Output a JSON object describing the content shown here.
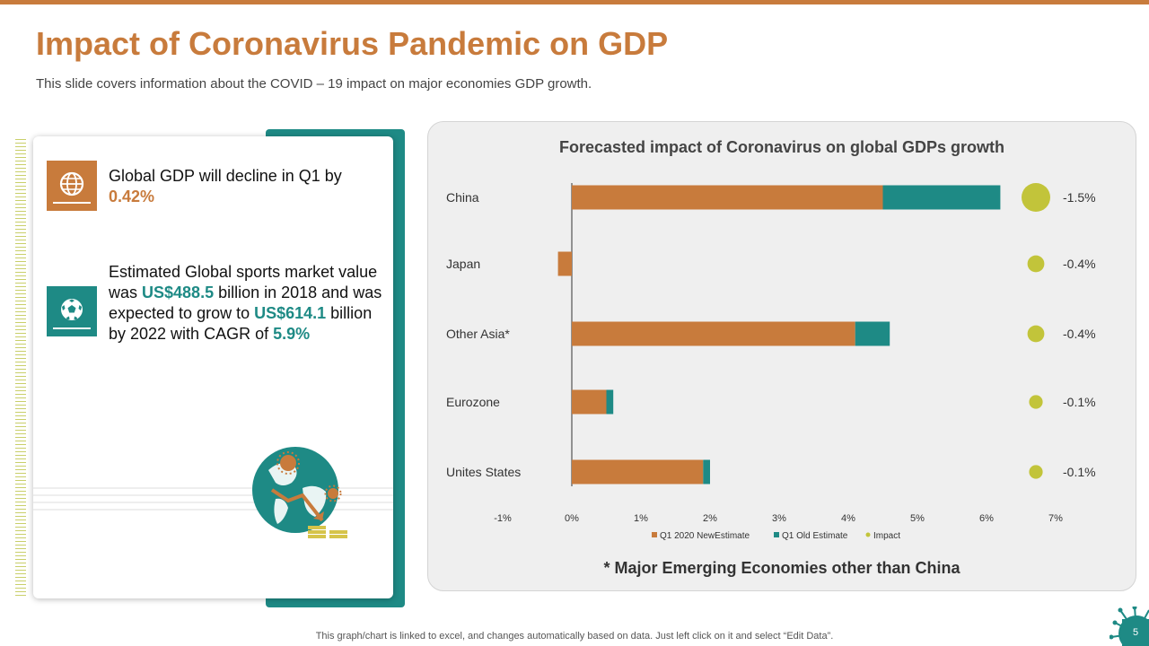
{
  "slide": {
    "title": "Impact of Coronavirus Pandemic on GDP",
    "subtitle": "This slide covers information about the COVID – 19 impact on major economies GDP growth.",
    "footer_note": "This graph/chart is linked to excel, and changes automatically based on data. Just left click on it and select “Edit Data”.",
    "page_number": "5"
  },
  "card": {
    "item1": {
      "text": "Global GDP will decline in Q1 by ",
      "value": "0.42%"
    },
    "item2": {
      "text_a": "Estimated Global sports market value was ",
      "value_a": "US$488.5",
      "text_b": " billion in 2018 and was expected to grow to ",
      "value_b": "US$614.1",
      "text_c": " billion by 2022 with CAGR of ",
      "value_c": "5.9%"
    },
    "icons": [
      "globe-icon",
      "soccer-ball-icon",
      "globe-virus-illustration"
    ]
  },
  "colors": {
    "orange": "#c87b3c",
    "teal": "#1e8a85",
    "impact": "#c2c43a"
  },
  "chart_data": {
    "type": "bar",
    "orientation": "horizontal",
    "stacked": true,
    "title": "Forecasted impact of Coronavirus on global GDPs growth",
    "footnote": "* Major Emerging Economies other than China",
    "categories": [
      "China",
      "Japan",
      "Other Asia*",
      "Eurozone",
      "Unites States"
    ],
    "series": [
      {
        "name": "Q1 2020 NewEstimate",
        "color": "#c87b3c",
        "values": [
          4.5,
          -0.2,
          4.1,
          0.5,
          1.9
        ]
      },
      {
        "name": "Q1 Old Estimate",
        "color": "#1e8a85",
        "values": [
          1.7,
          0,
          0.5,
          0.1,
          0.1
        ]
      }
    ],
    "impact": {
      "name": "Impact",
      "color": "#c2c43a",
      "values": [
        -1.5,
        -0.4,
        -0.4,
        -0.1,
        -0.1
      ],
      "labels": [
        "-1.5%",
        "-0.4%",
        "-0.4%",
        "-0.1%",
        "-0.1%"
      ]
    },
    "xlim": [
      -1,
      7
    ],
    "xticks": [
      "-1%",
      "0%",
      "1%",
      "2%",
      "3%",
      "4%",
      "5%",
      "6%",
      "7%"
    ],
    "legend_position": "bottom",
    "grid": false
  }
}
